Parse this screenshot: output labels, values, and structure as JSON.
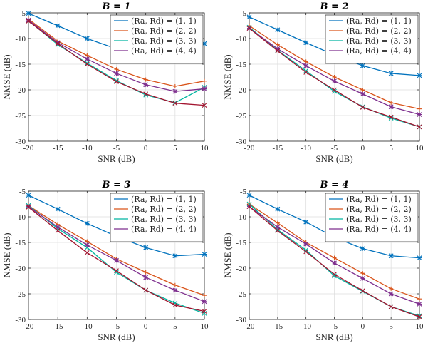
{
  "chart_data": [
    {
      "type": "line",
      "title": "B = 1",
      "xlabel": "SNR (dB)",
      "ylabel": "NMSE (dB)",
      "x": [
        -20,
        -15,
        -10,
        -5,
        0,
        5,
        10
      ],
      "xticks": [
        "-20",
        "-15",
        "-10",
        "-5",
        "0",
        "5",
        "10"
      ],
      "yticks": [
        "-5",
        "-10",
        "-15",
        "-20",
        "-25",
        "-30"
      ],
      "xlim": [
        -20,
        10
      ],
      "ylim": [
        -30,
        -5
      ],
      "grid": true,
      "legend_position": "top-right",
      "series": [
        {
          "name": "(Ra, Rd) = (1, 1)",
          "color": "#0072BD",
          "values": [
            -5.1,
            -7.5,
            -10.0,
            -12.0,
            -12.5,
            -12.5,
            -11.0
          ]
        },
        {
          "name": "(Ra, Rd) = (2, 2)",
          "color": "#D95319",
          "values": [
            -6.2,
            -10.5,
            -13.3,
            -16.0,
            -18.0,
            -19.3,
            -18.3
          ]
        },
        {
          "name": "(Ra, Rd) = (3, 3)",
          "color": "#00B5A0",
          "values": [
            -6.5,
            -11.2,
            -14.8,
            -18.2,
            -21.0,
            -22.5,
            -19.5
          ]
        },
        {
          "name": "(Ra, Rd) = (4, 4)",
          "color": "#7E2F8E",
          "values": [
            -6.4,
            -10.8,
            -14.0,
            -16.8,
            -19.0,
            -20.3,
            -19.8
          ]
        },
        {
          "name": "",
          "color": "#A2142F",
          "values": [
            -6.6,
            -11.0,
            -15.0,
            -18.4,
            -20.8,
            -22.6,
            -23.0
          ]
        }
      ]
    },
    {
      "type": "line",
      "title": "B = 2",
      "xlabel": "SNR (dB)",
      "ylabel": "NMSE (dB)",
      "x": [
        -20,
        -15,
        -10,
        -5,
        0,
        5,
        10
      ],
      "xticks": [
        "-20",
        "-15",
        "-10",
        "-5",
        "0",
        "5",
        "10"
      ],
      "yticks": [
        "-5",
        "-10",
        "-15",
        "-20",
        "-25",
        "-30"
      ],
      "xlim": [
        -20,
        10
      ],
      "ylim": [
        -30,
        -5
      ],
      "grid": true,
      "legend_position": "top-right",
      "series": [
        {
          "name": "(Ra, Rd) = (1, 1)",
          "color": "#0072BD",
          "values": [
            -5.8,
            -8.3,
            -10.8,
            -13.2,
            -15.3,
            -16.8,
            -17.2
          ]
        },
        {
          "name": "(Ra, Rd) = (2, 2)",
          "color": "#D95319",
          "values": [
            -7.5,
            -11.2,
            -14.5,
            -17.5,
            -20.0,
            -22.5,
            -23.7
          ]
        },
        {
          "name": "(Ra, Rd) = (3, 3)",
          "color": "#00B5A0",
          "values": [
            -7.8,
            -12.3,
            -16.3,
            -20.3,
            -23.3,
            -25.5,
            -27.2
          ]
        },
        {
          "name": "(Ra, Rd) = (4, 4)",
          "color": "#7E2F8E",
          "values": [
            -8.0,
            -12.0,
            -15.3,
            -18.3,
            -20.8,
            -23.3,
            -24.8
          ]
        },
        {
          "name": "",
          "color": "#A2142F",
          "values": [
            -8.0,
            -12.4,
            -16.6,
            -20.0,
            -23.4,
            -25.3,
            -27.2
          ]
        }
      ]
    },
    {
      "type": "line",
      "title": "B = 3",
      "xlabel": "SNR (dB)",
      "ylabel": "NMSE (dB)",
      "x": [
        -20,
        -15,
        -10,
        -5,
        0,
        5,
        10
      ],
      "xticks": [
        "-20",
        "-15",
        "-10",
        "-5",
        "0",
        "5",
        "10"
      ],
      "yticks": [
        "-5",
        "-10",
        "-15",
        "-20",
        "-25",
        "-30"
      ],
      "xlim": [
        -20,
        10
      ],
      "ylim": [
        -30,
        -5
      ],
      "grid": true,
      "legend_position": "top-right",
      "series": [
        {
          "name": "(Ra, Rd) = (1, 1)",
          "color": "#0072BD",
          "values": [
            -5.8,
            -8.5,
            -11.3,
            -13.8,
            -16.0,
            -17.6,
            -17.3
          ]
        },
        {
          "name": "(Ra, Rd) = (2, 2)",
          "color": "#D95319",
          "values": [
            -7.8,
            -11.5,
            -14.8,
            -18.2,
            -20.8,
            -23.3,
            -25.3
          ]
        },
        {
          "name": "(Ra, Rd) = (3, 3)",
          "color": "#00B5A0",
          "values": [
            -7.8,
            -12.3,
            -16.0,
            -20.8,
            -24.3,
            -26.8,
            -28.8
          ]
        },
        {
          "name": "(Ra, Rd) = (4, 4)",
          "color": "#7E2F8E",
          "values": [
            -8.0,
            -12.0,
            -15.5,
            -18.5,
            -21.8,
            -24.3,
            -26.5
          ]
        },
        {
          "name": "",
          "color": "#A2142F",
          "values": [
            -8.1,
            -12.7,
            -17.0,
            -20.5,
            -24.3,
            -27.2,
            -28.4
          ]
        }
      ]
    },
    {
      "type": "line",
      "title": "B = 4",
      "xlabel": "SNR (dB)",
      "ylabel": "NMSE (dB)",
      "x": [
        -20,
        -15,
        -10,
        -5,
        0,
        5,
        10
      ],
      "xticks": [
        "-20",
        "-15",
        "-10",
        "-5",
        "0",
        "5",
        "10"
      ],
      "yticks": [
        "-5",
        "-10",
        "-15",
        "-20",
        "-25",
        "-30"
      ],
      "xlim": [
        -20,
        10
      ],
      "ylim": [
        -30,
        -5
      ],
      "grid": true,
      "legend_position": "top-right",
      "series": [
        {
          "name": "(Ra, Rd) = (1, 1)",
          "color": "#0072BD",
          "values": [
            -5.8,
            -8.5,
            -11.0,
            -14.0,
            -16.2,
            -17.6,
            -18.0
          ]
        },
        {
          "name": "(Ra, Rd) = (2, 2)",
          "color": "#D95319",
          "values": [
            -7.5,
            -11.2,
            -15.0,
            -18.0,
            -21.0,
            -24.0,
            -26.0
          ]
        },
        {
          "name": "(Ra, Rd) = (3, 3)",
          "color": "#00B5A0",
          "values": [
            -7.5,
            -12.5,
            -16.5,
            -21.5,
            -24.5,
            -27.5,
            -29.3
          ]
        },
        {
          "name": "(Ra, Rd) = (4, 4)",
          "color": "#7E2F8E",
          "values": [
            -8.0,
            -12.0,
            -15.3,
            -19.0,
            -22.0,
            -25.0,
            -27.0
          ]
        },
        {
          "name": "",
          "color": "#A2142F",
          "values": [
            -8.0,
            -12.7,
            -16.8,
            -21.2,
            -24.4,
            -27.5,
            -29.5
          ]
        }
      ]
    }
  ]
}
